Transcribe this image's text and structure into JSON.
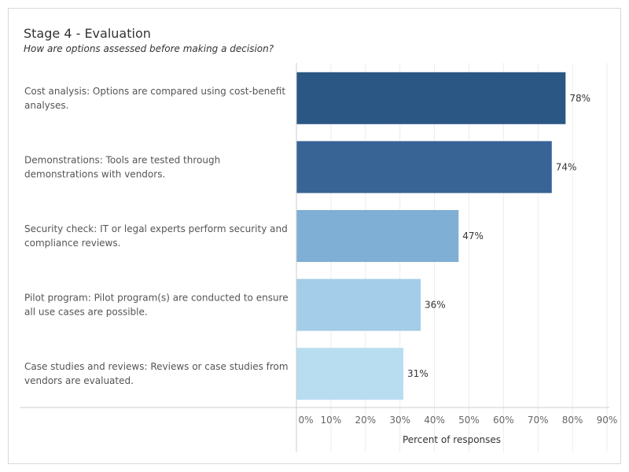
{
  "header": {
    "title": "Stage 4 - Evaluation",
    "subtitle": "How are options assessed before making a decision?"
  },
  "chart_data": {
    "type": "bar",
    "orientation": "horizontal",
    "categories": [
      [
        "Cost analysis: Options are compared using cost-benefit",
        "analyses."
      ],
      [
        "Demonstrations: Tools are tested through",
        "demonstrations with vendors."
      ],
      [
        "Security check: IT or legal experts perform security and",
        "compliance reviews."
      ],
      [
        "Pilot program: Pilot program(s) are conducted to ensure",
        "all use cases are possible."
      ],
      [
        "Case studies and reviews: Reviews or case studies from",
        "vendors are evaluated."
      ]
    ],
    "values": [
      78,
      74,
      47,
      36,
      31
    ],
    "value_labels": [
      "78%",
      "74%",
      "47%",
      "36%",
      "31%"
    ],
    "bar_colors": [
      "#2a5783",
      "#386395",
      "#7fafd4",
      "#a3cde8",
      "#b8ddf1"
    ],
    "xlabel": "Percent of responses",
    "xlim": [
      0,
      90
    ],
    "x_ticks": [
      0,
      10,
      20,
      30,
      40,
      50,
      60,
      70,
      80,
      90
    ],
    "x_tick_labels": [
      "0%",
      "10%",
      "20%",
      "30%",
      "40%",
      "50%",
      "60%",
      "70%",
      "80%",
      "90%"
    ],
    "grid": true
  }
}
